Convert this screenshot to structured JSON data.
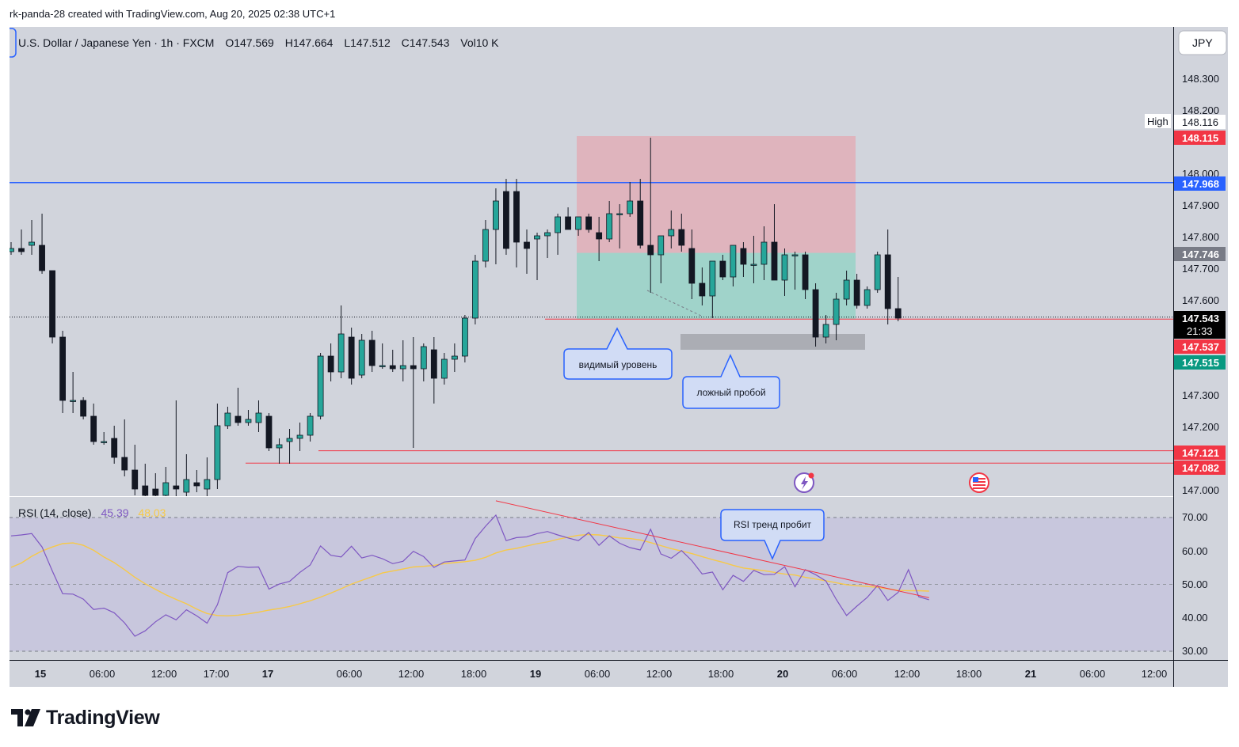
{
  "header": {
    "created_text": "rk-panda-28 created with TradingView.com, Aug 20, 2025 02:38 UTC+1"
  },
  "legend": {
    "symbol": "U.S. Dollar / Japanese Yen · 1h · FXCM",
    "open": "O147.569",
    "high": "H147.664",
    "low": "L147.512",
    "close": "C147.543",
    "volume": "Vol10 K"
  },
  "currency_button": "JPY",
  "price_axis": {
    "ticks": [
      "148.300",
      "148.200",
      "148.000",
      "147.900",
      "147.800",
      "147.700",
      "147.600",
      "147.300",
      "147.200",
      "147.000"
    ]
  },
  "price_tags": {
    "high_label": "High",
    "high_value": "148.116",
    "stop": "148.115",
    "level_blue": "147.968",
    "entry": "147.746",
    "last_price": "147.543",
    "countdown": "21:33",
    "bid": "147.537",
    "ask": "147.515",
    "low1": "147.121",
    "low2": "147.082"
  },
  "time_axis": [
    "15",
    "06:00",
    "12:00",
    "17:00",
    "17",
    "06:00",
    "12:00",
    "18:00",
    "19",
    "06:00",
    "12:00",
    "18:00",
    "20",
    "06:00",
    "12:00",
    "18:00",
    "21",
    "06:00",
    "12:00"
  ],
  "annotations": {
    "visible_level": "видимый уровень",
    "false_breakout": "ложный пробой",
    "rsi_break": "RSI тренд пробит"
  },
  "rsi_panel": {
    "title": "RSI (14, close)",
    "rsi_value": "45.39",
    "ma_value": "48.03",
    "ticks": [
      "70.00",
      "60.00",
      "50.00",
      "40.00",
      "30.00"
    ]
  },
  "brand": "TradingView",
  "colors": {
    "up": "#26a69a",
    "down": "#131722",
    "blue_level": "#2962ff",
    "red": "#f23645",
    "green_tag": "#089981",
    "rsi": "#7e57c2",
    "rsi_ma": "#f7c948",
    "bg": "#d1d4dc",
    "rsi_bg": "#c8c7dd",
    "stop_zone": "#e3a9b3",
    "target_zone": "#8fd3c4"
  },
  "chart_data": [
    {
      "type": "candlestick",
      "title": "U.S. Dollar / Japanese Yen · 1h · FXCM",
      "ylim": [
        147.0,
        148.35
      ],
      "candles": [
        {
          "o": 147.75,
          "h": 147.78,
          "l": 147.74,
          "c": 147.76
        },
        {
          "o": 147.76,
          "h": 147.82,
          "l": 147.74,
          "c": 147.75
        },
        {
          "o": 147.77,
          "h": 147.85,
          "l": 147.74,
          "c": 147.78
        },
        {
          "o": 147.77,
          "h": 147.87,
          "l": 147.68,
          "c": 147.69
        },
        {
          "o": 147.69,
          "h": 147.69,
          "l": 147.46,
          "c": 147.48
        },
        {
          "o": 147.48,
          "h": 147.5,
          "l": 147.24,
          "c": 147.28
        },
        {
          "o": 147.28,
          "h": 147.37,
          "l": 147.24,
          "c": 147.28
        },
        {
          "o": 147.28,
          "h": 147.29,
          "l": 147.22,
          "c": 147.23
        },
        {
          "o": 147.23,
          "h": 147.27,
          "l": 147.14,
          "c": 147.15
        },
        {
          "o": 147.15,
          "h": 147.18,
          "l": 147.14,
          "c": 147.15
        },
        {
          "o": 147.16,
          "h": 147.2,
          "l": 147.08,
          "c": 147.1
        },
        {
          "o": 147.1,
          "h": 147.22,
          "l": 147.04,
          "c": 147.06
        },
        {
          "o": 147.06,
          "h": 147.14,
          "l": 146.98,
          "c": 147.0
        },
        {
          "o": 147.01,
          "h": 147.08,
          "l": 146.97,
          "c": 146.98
        },
        {
          "o": 147.0,
          "h": 147.05,
          "l": 146.95,
          "c": 146.98
        },
        {
          "o": 146.98,
          "h": 147.07,
          "l": 146.96,
          "c": 147.02
        },
        {
          "o": 147.01,
          "h": 147.28,
          "l": 146.95,
          "c": 147.0
        },
        {
          "o": 146.99,
          "h": 147.11,
          "l": 146.96,
          "c": 147.03
        },
        {
          "o": 147.02,
          "h": 147.06,
          "l": 146.99,
          "c": 147.01
        },
        {
          "o": 147.0,
          "h": 147.1,
          "l": 146.97,
          "c": 147.03
        },
        {
          "o": 147.03,
          "h": 147.27,
          "l": 147.0,
          "c": 147.2
        },
        {
          "o": 147.2,
          "h": 147.26,
          "l": 147.19,
          "c": 147.24
        },
        {
          "o": 147.23,
          "h": 147.32,
          "l": 147.2,
          "c": 147.21
        },
        {
          "o": 147.21,
          "h": 147.25,
          "l": 147.2,
          "c": 147.22
        },
        {
          "o": 147.21,
          "h": 147.28,
          "l": 147.18,
          "c": 147.24
        },
        {
          "o": 147.23,
          "h": 147.24,
          "l": 147.12,
          "c": 147.13
        },
        {
          "o": 147.13,
          "h": 147.16,
          "l": 147.08,
          "c": 147.14
        },
        {
          "o": 147.15,
          "h": 147.19,
          "l": 147.08,
          "c": 147.16
        },
        {
          "o": 147.16,
          "h": 147.21,
          "l": 147.12,
          "c": 147.17
        },
        {
          "o": 147.17,
          "h": 147.24,
          "l": 147.15,
          "c": 147.23
        },
        {
          "o": 147.23,
          "h": 147.43,
          "l": 147.22,
          "c": 147.42
        },
        {
          "o": 147.42,
          "h": 147.46,
          "l": 147.34,
          "c": 147.37
        },
        {
          "o": 147.37,
          "h": 147.58,
          "l": 147.35,
          "c": 147.49
        },
        {
          "o": 147.48,
          "h": 147.51,
          "l": 147.33,
          "c": 147.35
        },
        {
          "o": 147.36,
          "h": 147.49,
          "l": 147.35,
          "c": 147.47
        },
        {
          "o": 147.47,
          "h": 147.5,
          "l": 147.37,
          "c": 147.39
        },
        {
          "o": 147.39,
          "h": 147.46,
          "l": 147.38,
          "c": 147.39
        },
        {
          "o": 147.39,
          "h": 147.44,
          "l": 147.37,
          "c": 147.38
        },
        {
          "o": 147.38,
          "h": 147.47,
          "l": 147.34,
          "c": 147.39
        },
        {
          "o": 147.39,
          "h": 147.48,
          "l": 147.13,
          "c": 147.38
        },
        {
          "o": 147.38,
          "h": 147.46,
          "l": 147.34,
          "c": 147.45
        },
        {
          "o": 147.44,
          "h": 147.48,
          "l": 147.27,
          "c": 147.35
        },
        {
          "o": 147.35,
          "h": 147.43,
          "l": 147.33,
          "c": 147.41
        },
        {
          "o": 147.41,
          "h": 147.46,
          "l": 147.37,
          "c": 147.42
        },
        {
          "o": 147.42,
          "h": 147.55,
          "l": 147.4,
          "c": 147.54
        },
        {
          "o": 147.54,
          "h": 147.74,
          "l": 147.52,
          "c": 147.72
        },
        {
          "o": 147.72,
          "h": 147.85,
          "l": 147.7,
          "c": 147.82
        },
        {
          "o": 147.82,
          "h": 147.95,
          "l": 147.71,
          "c": 147.91
        },
        {
          "o": 147.94,
          "h": 147.98,
          "l": 147.74,
          "c": 147.76
        },
        {
          "o": 147.94,
          "h": 147.98,
          "l": 147.7,
          "c": 147.78
        },
        {
          "o": 147.78,
          "h": 147.82,
          "l": 147.68,
          "c": 147.76
        },
        {
          "o": 147.79,
          "h": 147.81,
          "l": 147.66,
          "c": 147.8
        },
        {
          "o": 147.8,
          "h": 147.82,
          "l": 147.73,
          "c": 147.81
        },
        {
          "o": 147.81,
          "h": 147.87,
          "l": 147.74,
          "c": 147.86
        },
        {
          "o": 147.86,
          "h": 147.89,
          "l": 147.82,
          "c": 147.82
        },
        {
          "o": 147.82,
          "h": 147.86,
          "l": 147.8,
          "c": 147.86
        },
        {
          "o": 147.86,
          "h": 147.87,
          "l": 147.81,
          "c": 147.82
        },
        {
          "o": 147.81,
          "h": 147.86,
          "l": 147.72,
          "c": 147.79
        },
        {
          "o": 147.79,
          "h": 147.91,
          "l": 147.78,
          "c": 147.87
        },
        {
          "o": 147.87,
          "h": 147.9,
          "l": 147.76,
          "c": 147.87
        },
        {
          "o": 147.87,
          "h": 147.97,
          "l": 147.86,
          "c": 147.91
        },
        {
          "o": 147.91,
          "h": 147.98,
          "l": 147.76,
          "c": 147.77
        },
        {
          "o": 147.77,
          "h": 148.11,
          "l": 147.62,
          "c": 147.74
        },
        {
          "o": 147.74,
          "h": 147.8,
          "l": 147.65,
          "c": 147.8
        },
        {
          "o": 147.8,
          "h": 147.88,
          "l": 147.76,
          "c": 147.82
        },
        {
          "o": 147.82,
          "h": 147.87,
          "l": 147.75,
          "c": 147.77
        },
        {
          "o": 147.76,
          "h": 147.82,
          "l": 147.6,
          "c": 147.65
        },
        {
          "o": 147.65,
          "h": 147.7,
          "l": 147.58,
          "c": 147.61
        },
        {
          "o": 147.61,
          "h": 147.72,
          "l": 147.54,
          "c": 147.72
        },
        {
          "o": 147.72,
          "h": 147.74,
          "l": 147.66,
          "c": 147.67
        },
        {
          "o": 147.67,
          "h": 147.77,
          "l": 147.64,
          "c": 147.77
        },
        {
          "o": 147.76,
          "h": 147.78,
          "l": 147.67,
          "c": 147.71
        },
        {
          "o": 147.71,
          "h": 147.8,
          "l": 147.65,
          "c": 147.71
        },
        {
          "o": 147.71,
          "h": 147.83,
          "l": 147.66,
          "c": 147.78
        },
        {
          "o": 147.78,
          "h": 147.9,
          "l": 147.66,
          "c": 147.66
        },
        {
          "o": 147.66,
          "h": 147.76,
          "l": 147.61,
          "c": 147.74
        },
        {
          "o": 147.74,
          "h": 147.75,
          "l": 147.63,
          "c": 147.74
        },
        {
          "o": 147.74,
          "h": 147.75,
          "l": 147.6,
          "c": 147.63
        },
        {
          "o": 147.63,
          "h": 147.65,
          "l": 147.45,
          "c": 147.48
        },
        {
          "o": 147.48,
          "h": 147.55,
          "l": 147.46,
          "c": 147.52
        },
        {
          "o": 147.52,
          "h": 147.62,
          "l": 147.47,
          "c": 147.6
        },
        {
          "o": 147.6,
          "h": 147.69,
          "l": 147.58,
          "c": 147.66
        },
        {
          "o": 147.66,
          "h": 147.68,
          "l": 147.57,
          "c": 147.58
        },
        {
          "o": 147.58,
          "h": 147.64,
          "l": 147.57,
          "c": 147.63
        },
        {
          "o": 147.63,
          "h": 147.75,
          "l": 147.62,
          "c": 147.74
        },
        {
          "o": 147.74,
          "h": 147.82,
          "l": 147.52,
          "c": 147.57
        },
        {
          "o": 147.57,
          "h": 147.67,
          "l": 147.53,
          "c": 147.54
        }
      ],
      "levels": [
        147.968,
        147.537,
        147.121,
        147.082
      ],
      "zones": {
        "stop": {
          "from": 147.746,
          "to": 148.115
        },
        "target": {
          "from": 147.537,
          "to": 147.746
        },
        "grey": {
          "from": 147.44,
          "to": 147.49
        }
      }
    },
    {
      "type": "line",
      "title": "RSI (14, close)",
      "ylim": [
        30,
        70
      ],
      "series": [
        {
          "name": "RSI",
          "values": [
            64.5,
            64.8,
            65.2,
            61.2,
            54,
            47.2,
            47.1,
            45.6,
            42.5,
            42.9,
            41.5,
            38.5,
            34.5,
            36.1,
            38.8,
            40.9,
            39.4,
            42.4,
            40.6,
            38.4,
            43.9,
            53.5,
            55.4,
            55.1,
            55.2,
            48.6,
            50.1,
            50.9,
            53.6,
            55.8,
            61.5,
            58.7,
            58.2,
            61.4,
            57.9,
            58.7,
            57.7,
            56.2,
            56.9,
            59.9,
            58.3,
            55.1,
            56.7,
            57,
            57.3,
            63.7,
            67.4,
            70.7,
            63.1,
            64,
            64.2,
            65.2,
            65.8,
            64.8,
            63.9,
            63.1,
            65.5,
            61.7,
            64.5,
            62.3,
            61,
            60.3,
            66.5,
            59.1,
            57.8,
            60.1,
            57.1,
            53.1,
            53.7,
            48.4,
            52.7,
            50.9,
            54.2,
            52.9,
            53,
            55.3,
            49.3,
            54.4,
            52.9,
            51,
            45.5,
            40.7,
            43.5,
            46.1,
            49.7,
            45.2,
            47.6,
            54.4,
            46.3,
            45.4
          ]
        },
        {
          "name": "RSI-based MA",
          "values": [
            55.1,
            56.4,
            58.4,
            60,
            61.2,
            62.2,
            62.4,
            61.7,
            60.2,
            58.2,
            56.5,
            54.4,
            52.1,
            50.2,
            48.5,
            46.9,
            45.5,
            44.2,
            42.6,
            41.3,
            40.7,
            40.6,
            40.8,
            41.2,
            41.7,
            42.3,
            42.8,
            43.4,
            44.2,
            45.1,
            46.2,
            47.4,
            48.7,
            50.1,
            51.2,
            52.3,
            53.4,
            54,
            54.6,
            55.2,
            55.4,
            55.7,
            56.2,
            56.5,
            56.8,
            57.2,
            58.1,
            59.4,
            60.3,
            60.8,
            61.5,
            62.2,
            62.7,
            63.5,
            64.1,
            64.7,
            64.9,
            64.8,
            64.4,
            63.9,
            63.7,
            63.3,
            62.5,
            61.6,
            60.7,
            60,
            59.2,
            58.3,
            57.4,
            56.6,
            55.7,
            54.9,
            54.5,
            54.1,
            53.6,
            53.1,
            52.8,
            52.1,
            51.6,
            51.1,
            50.5,
            49.9,
            49.6,
            49.4,
            49.1,
            48.7,
            48.2,
            48.1,
            48.1,
            48
          ]
        }
      ],
      "trendline": [
        [
          47,
          75.0
        ],
        [
          89,
          46.0
        ]
      ]
    }
  ]
}
